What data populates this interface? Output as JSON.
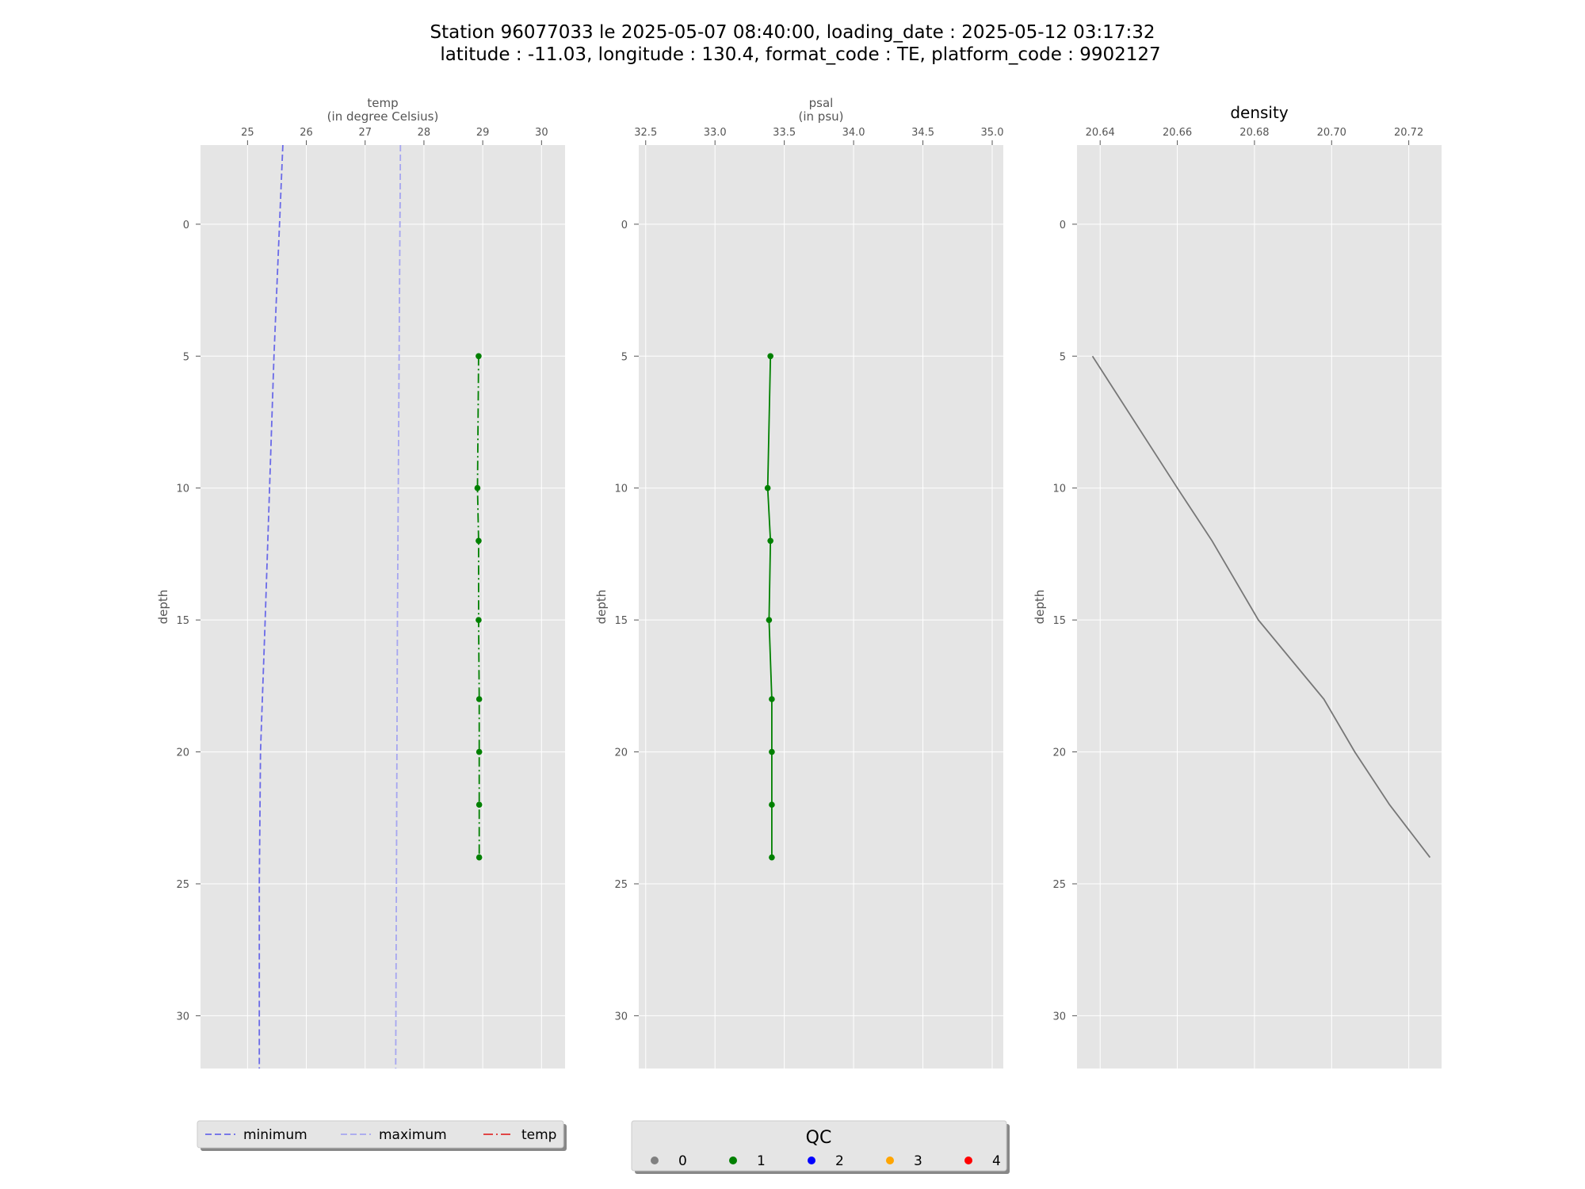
{
  "figure_title": {
    "line1": "Station 96077033 le 2025-05-07 08:40:00, loading_date : 2025-05-12 03:17:32",
    "line2": "latitude : -11.03, longitude : 130.4, format_code : TE, platform_code : 9902127"
  },
  "colors": {
    "panel_bg": "#e5e5e5",
    "grid": "#ffffff",
    "minimum": "#6a6ae8",
    "maximum": "#a6a6f0",
    "temp_line": "#e03030",
    "qc_0": "#808080",
    "qc_1": "#008000",
    "qc_2": "#0000ff",
    "qc_3": "#ffa500",
    "qc_4": "#ff0000",
    "density_line": "#777777"
  },
  "chart_data": [
    {
      "type": "line",
      "title": "temp",
      "title_unit": "(in degree Celsius)",
      "xlabel": "temp (in degree Celsius)",
      "ylabel": "depth",
      "xlim": [
        24.2,
        30.4
      ],
      "ylim": [
        32,
        -3
      ],
      "y_inverted": true,
      "xticks": [
        25,
        26,
        27,
        28,
        29,
        30
      ],
      "yticks": [
        0,
        5,
        10,
        15,
        20,
        25,
        30
      ],
      "grid": true,
      "series": [
        {
          "name": "minimum",
          "style": "dashed",
          "color": "#6a6ae8",
          "points": [
            [
              25.6,
              -3
            ],
            [
              25.45,
              5
            ],
            [
              25.3,
              15
            ],
            [
              25.22,
              20
            ],
            [
              25.2,
              25
            ],
            [
              25.2,
              32
            ]
          ]
        },
        {
          "name": "maximum",
          "style": "dashed",
          "color": "#a6a6f0",
          "points": [
            [
              27.6,
              -3
            ],
            [
              27.55,
              15
            ],
            [
              27.52,
              32
            ]
          ]
        },
        {
          "name": "temp",
          "style": "dashdot",
          "color": "#008000",
          "markers": true,
          "points": [
            [
              28.93,
              5
            ],
            [
              28.91,
              10
            ],
            [
              28.93,
              12
            ],
            [
              28.93,
              15
            ],
            [
              28.94,
              18
            ],
            [
              28.94,
              20
            ],
            [
              28.94,
              22
            ],
            [
              28.94,
              24
            ]
          ]
        }
      ]
    },
    {
      "type": "line",
      "title": "psal",
      "title_unit": "(in psu)",
      "xlabel": "psal (in psu)",
      "ylabel": "depth",
      "xlim": [
        32.45,
        35.08
      ],
      "ylim": [
        32,
        -3
      ],
      "y_inverted": true,
      "xticks": [
        32.5,
        33.0,
        33.5,
        34.0,
        34.5,
        35.0
      ],
      "yticks": [
        0,
        5,
        10,
        15,
        20,
        25,
        30
      ],
      "grid": true,
      "series": [
        {
          "name": "psal",
          "style": "solid",
          "color": "#008000",
          "markers": true,
          "points": [
            [
              33.4,
              5
            ],
            [
              33.38,
              10
            ],
            [
              33.4,
              12
            ],
            [
              33.39,
              15
            ],
            [
              33.41,
              18
            ],
            [
              33.41,
              20
            ],
            [
              33.41,
              22
            ],
            [
              33.41,
              24
            ]
          ]
        }
      ]
    },
    {
      "type": "line",
      "title": "density",
      "xlabel": "",
      "ylabel": "depth",
      "xlim": [
        20.634,
        20.7285
      ],
      "ylim": [
        32,
        -3
      ],
      "y_inverted": true,
      "xticks": [
        20.64,
        20.66,
        20.68,
        20.7,
        20.72
      ],
      "yticks": [
        0,
        5,
        10,
        15,
        20,
        25,
        30
      ],
      "grid": true,
      "series": [
        {
          "name": "density",
          "style": "solid",
          "color": "#777777",
          "points": [
            [
              20.638,
              5
            ],
            [
              20.66,
              10
            ],
            [
              20.669,
              12
            ],
            [
              20.681,
              15
            ],
            [
              20.698,
              18
            ],
            [
              20.706,
              20
            ],
            [
              20.715,
              22
            ],
            [
              20.7255,
              24
            ]
          ]
        }
      ]
    }
  ],
  "legend_lines": {
    "placement": "bottom-left",
    "entries": [
      {
        "label": "minimum",
        "style": "dashed",
        "color": "#6a6ae8"
      },
      {
        "label": "maximum",
        "style": "dashed",
        "color": "#a6a6f0"
      },
      {
        "label": "temp",
        "style": "dashdot",
        "color": "#e03030"
      }
    ]
  },
  "legend_qc": {
    "title": "QC",
    "placement": "bottom-center",
    "entries": [
      {
        "label": "0",
        "color": "#808080"
      },
      {
        "label": "1",
        "color": "#008000"
      },
      {
        "label": "2",
        "color": "#0000ff"
      },
      {
        "label": "3",
        "color": "#ffa500"
      },
      {
        "label": "4",
        "color": "#ff0000"
      }
    ]
  }
}
